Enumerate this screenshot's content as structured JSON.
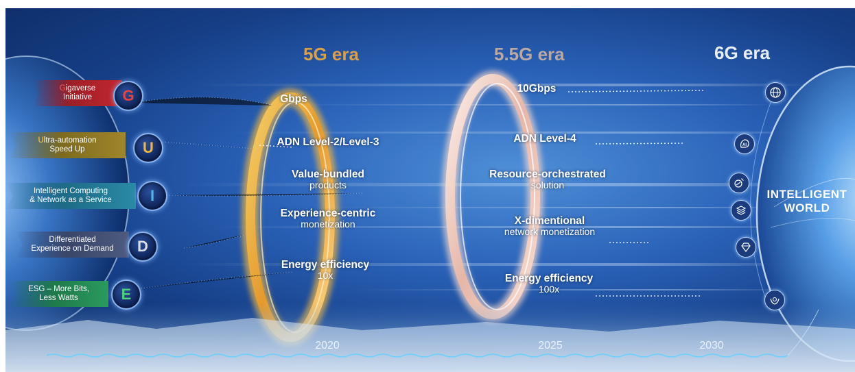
{
  "eras": {
    "era_5g": "5G era",
    "era_55g": "5.5G era",
    "era_6g": "6G era"
  },
  "gauide": {
    "items": [
      {
        "letter": "G",
        "first": "G",
        "rest_line1": "igaverse",
        "line2": "Initiative",
        "letter_color": "#e8433a"
      },
      {
        "letter": "U",
        "first": "U",
        "rest_line1": "ltra-automation",
        "line2": "Speed Up",
        "letter_color": "#f3b63c"
      },
      {
        "letter": "I",
        "first": "I",
        "rest_line1": "ntelligent Computing",
        "line2": "& Network as a Service",
        "letter_color": "#4fb6e8"
      },
      {
        "letter": "D",
        "first": "D",
        "rest_line1": "ifferentiated",
        "line2": "Experience on Demand",
        "letter_color": "#d8dde8"
      },
      {
        "letter": "E",
        "first": "E",
        "rest_line1": "SG – More Bits,",
        "line2": "Less Watts",
        "letter_color": "#4fd07a"
      }
    ]
  },
  "col_5g": {
    "r1": "Gbps",
    "r2": "ADN Level-2/Level-3",
    "r3_bold": "Value-bundled",
    "r3_norm": "products",
    "r4_bold": "Experience-centric",
    "r4_norm": "monetization",
    "r5_bold": "Energy efficiency",
    "r5_norm": "10x"
  },
  "col_55g": {
    "r1": "10Gbps",
    "r2": "ADN Level-4",
    "r3_bold": "Resource-orchestrated",
    "r3_norm": "solution",
    "r4_bold": "X-dimentional",
    "r4_norm": "network monetization",
    "r5_bold": "Energy efficiency",
    "r5_norm": "100x"
  },
  "world": {
    "line1": "INTELLIGENT",
    "line2": "WORLD",
    "icons": [
      "globe-icon",
      "ai-icon",
      "satellite-icon",
      "layers-icon",
      "diamond-icon",
      "hands-icon"
    ]
  },
  "timeline": {
    "y2020": "2020",
    "y2025": "2025",
    "y2030": "2030"
  },
  "colors": {
    "era_5g": "#d9a049",
    "era_55g": "#b9a8a3",
    "era_6g": "#e9eef6",
    "ring_5g": "#f0b23a",
    "ring_55g": "#f1d2c8"
  }
}
